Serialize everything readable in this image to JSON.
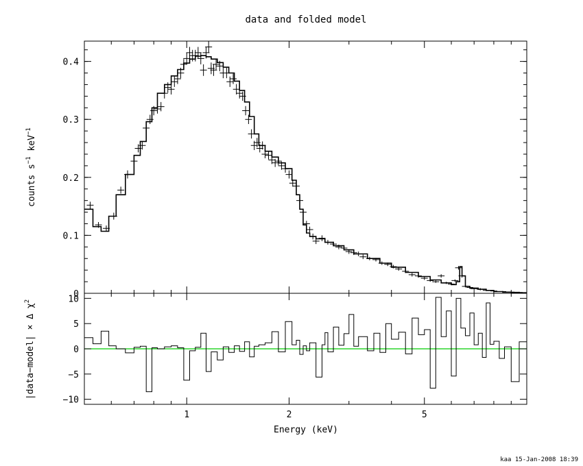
{
  "title": "data and folded model",
  "footer": "kaa 15-Jan-2008 18:39",
  "colors": {
    "line": "#000000",
    "zero_line": "#00cc00"
  },
  "chart_data": [
    {
      "type": "line",
      "panel": "top",
      "ylabel": "counts s^-1 keV^-1",
      "xscale": "log",
      "xlim": [
        0.5,
        10
      ],
      "ylim": [
        0,
        0.435
      ],
      "yticks": [
        0,
        0.1,
        0.2,
        0.3,
        0.4
      ],
      "ytick_labels": [
        "0",
        "0.1",
        "0.2",
        "0.3",
        "0.4"
      ],
      "series": [
        {
          "kind": "model-step",
          "x": [
            0.5,
            0.53,
            0.56,
            0.59,
            0.62,
            0.66,
            0.7,
            0.73,
            0.76,
            0.79,
            0.82,
            0.86,
            0.9,
            0.94,
            0.98,
            1.02,
            1.06,
            1.1,
            1.14,
            1.18,
            1.23,
            1.28,
            1.33,
            1.38,
            1.43,
            1.48,
            1.53,
            1.58,
            1.63,
            1.7,
            1.78,
            1.86,
            1.95,
            2.04,
            2.1,
            2.15,
            2.2,
            2.25,
            2.3,
            2.4,
            2.55,
            2.7,
            2.9,
            3.1,
            3.4,
            3.7,
            4.0,
            4.4,
            4.8,
            5.2,
            5.6,
            6.0,
            6.2,
            6.35,
            6.45,
            6.6,
            6.8,
            7.2,
            7.6,
            8.0,
            8.5,
            9.0,
            9.5,
            10.0
          ],
          "y": [
            0.145,
            0.115,
            0.107,
            0.133,
            0.17,
            0.205,
            0.238,
            0.262,
            0.296,
            0.32,
            0.345,
            0.36,
            0.375,
            0.386,
            0.397,
            0.404,
            0.409,
            0.41,
            0.408,
            0.404,
            0.398,
            0.39,
            0.38,
            0.366,
            0.35,
            0.33,
            0.305,
            0.275,
            0.255,
            0.245,
            0.235,
            0.225,
            0.215,
            0.195,
            0.17,
            0.145,
            0.118,
            0.104,
            0.098,
            0.094,
            0.088,
            0.082,
            0.075,
            0.068,
            0.06,
            0.052,
            0.045,
            0.036,
            0.029,
            0.023,
            0.018,
            0.015,
            0.02,
            0.046,
            0.03,
            0.012,
            0.009,
            0.007,
            0.005,
            0.003,
            0.002,
            0.0015,
            0.001,
            0.001
          ]
        },
        {
          "kind": "data",
          "x": [
            0.52,
            0.55,
            0.58,
            0.61,
            0.64,
            0.67,
            0.7,
            0.72,
            0.74,
            0.76,
            0.78,
            0.8,
            0.82,
            0.84,
            0.86,
            0.88,
            0.9,
            0.92,
            0.94,
            0.96,
            0.98,
            1.0,
            1.02,
            1.04,
            1.06,
            1.08,
            1.1,
            1.12,
            1.14,
            1.16,
            1.18,
            1.2,
            1.22,
            1.25,
            1.28,
            1.31,
            1.34,
            1.37,
            1.4,
            1.43,
            1.46,
            1.49,
            1.52,
            1.55,
            1.58,
            1.61,
            1.64,
            1.67,
            1.7,
            1.74,
            1.78,
            1.82,
            1.86,
            1.9,
            1.95,
            2.0,
            2.05,
            2.1,
            2.15,
            2.2,
            2.25,
            2.3,
            2.35,
            2.4,
            2.5,
            2.6,
            2.7,
            2.8,
            2.9,
            3.0,
            3.1,
            3.2,
            3.3,
            3.45,
            3.6,
            3.75,
            3.9,
            4.05,
            4.2,
            4.4,
            4.6,
            4.8,
            5.0,
            5.2,
            5.4,
            5.6,
            5.8,
            6.0,
            6.15,
            6.3,
            6.45,
            6.6,
            6.8,
            7.0,
            7.3,
            7.6,
            8.0,
            8.5,
            9.0,
            9.5
          ],
          "y": [
            0.152,
            0.118,
            0.112,
            0.133,
            0.178,
            0.205,
            0.228,
            0.25,
            0.255,
            0.285,
            0.3,
            0.315,
            0.318,
            0.322,
            0.345,
            0.355,
            0.352,
            0.365,
            0.37,
            0.38,
            0.395,
            0.405,
            0.415,
            0.41,
            0.41,
            0.415,
            0.405,
            0.385,
            0.415,
            0.425,
            0.388,
            0.385,
            0.395,
            0.392,
            0.38,
            0.38,
            0.365,
            0.37,
            0.352,
            0.345,
            0.34,
            0.315,
            0.3,
            0.275,
            0.255,
            0.26,
            0.25,
            0.255,
            0.24,
            0.238,
            0.23,
            0.225,
            0.228,
            0.22,
            0.215,
            0.205,
            0.19,
            0.185,
            0.16,
            0.14,
            0.12,
            0.11,
            0.098,
            0.09,
            0.095,
            0.088,
            0.085,
            0.08,
            0.078,
            0.072,
            0.07,
            0.068,
            0.063,
            0.06,
            0.058,
            0.052,
            0.05,
            0.046,
            0.042,
            0.038,
            0.032,
            0.03,
            0.026,
            0.022,
            0.02,
            0.03,
            0.018,
            0.016,
            0.022,
            0.044,
            0.03,
            0.012,
            0.01,
            0.008,
            0.007,
            0.005,
            0.004,
            0.003,
            0.002,
            0.0015
          ],
          "yerr": [
            0.006,
            0.005,
            0.005,
            0.006,
            0.006,
            0.007,
            0.007,
            0.007,
            0.007,
            0.008,
            0.008,
            0.008,
            0.008,
            0.008,
            0.009,
            0.009,
            0.009,
            0.009,
            0.009,
            0.009,
            0.009,
            0.01,
            0.01,
            0.01,
            0.01,
            0.01,
            0.01,
            0.01,
            0.01,
            0.01,
            0.01,
            0.01,
            0.009,
            0.009,
            0.009,
            0.009,
            0.009,
            0.009,
            0.009,
            0.009,
            0.008,
            0.008,
            0.008,
            0.008,
            0.008,
            0.008,
            0.007,
            0.007,
            0.007,
            0.007,
            0.007,
            0.007,
            0.007,
            0.007,
            0.007,
            0.007,
            0.006,
            0.006,
            0.006,
            0.006,
            0.005,
            0.005,
            0.005,
            0.005,
            0.005,
            0.004,
            0.004,
            0.004,
            0.004,
            0.004,
            0.004,
            0.004,
            0.004,
            0.003,
            0.003,
            0.003,
            0.003,
            0.003,
            0.003,
            0.003,
            0.003,
            0.003,
            0.003,
            0.002,
            0.002,
            0.003,
            0.002,
            0.002,
            0.002,
            0.003,
            0.003,
            0.002,
            0.002,
            0.002,
            0.002,
            0.001,
            0.001,
            0.001,
            0.001,
            0.001
          ]
        }
      ]
    },
    {
      "type": "bar",
      "panel": "bottom",
      "xlabel": "Energy (keV)",
      "ylabel": "|data-model| × Δ χ²",
      "xscale": "log",
      "xlim": [
        0.5,
        10
      ],
      "xticks": [
        1,
        2,
        5
      ],
      "xtick_labels": [
        "1",
        "2",
        "5"
      ],
      "ylim": [
        -11,
        11
      ],
      "yticks": [
        -10,
        -5,
        0,
        5,
        10
      ],
      "ytick_labels": [
        "−10",
        "−5",
        "0",
        "5",
        "10"
      ],
      "zero_line": true,
      "x": [
        0.5,
        0.53,
        0.56,
        0.59,
        0.62,
        0.66,
        0.7,
        0.73,
        0.76,
        0.79,
        0.82,
        0.86,
        0.9,
        0.94,
        0.98,
        1.02,
        1.06,
        1.1,
        1.14,
        1.18,
        1.23,
        1.28,
        1.33,
        1.38,
        1.43,
        1.48,
        1.53,
        1.58,
        1.63,
        1.7,
        1.78,
        1.86,
        1.95,
        2.04,
        2.1,
        2.15,
        2.2,
        2.25,
        2.3,
        2.4,
        2.5,
        2.55,
        2.6,
        2.7,
        2.8,
        2.9,
        3.0,
        3.1,
        3.2,
        3.4,
        3.55,
        3.7,
        3.85,
        4.0,
        4.2,
        4.4,
        4.6,
        4.8,
        5.0,
        5.2,
        5.4,
        5.6,
        5.8,
        6.0,
        6.2,
        6.4,
        6.6,
        6.8,
        7.0,
        7.2,
        7.4,
        7.6,
        7.8,
        8.0,
        8.3,
        8.6,
        9.0,
        9.5,
        10.0
      ],
      "values": [
        2.2,
        1.0,
        3.5,
        0.6,
        0.0,
        -0.8,
        0.3,
        0.5,
        -8.5,
        0.2,
        0.0,
        0.4,
        0.6,
        0.2,
        -6.2,
        -0.4,
        0.3,
        3.1,
        -4.5,
        -0.6,
        -2.2,
        0.4,
        -0.7,
        0.6,
        -0.5,
        1.4,
        -1.6,
        0.5,
        0.8,
        1.2,
        3.4,
        -0.6,
        5.4,
        0.8,
        1.7,
        -1.1,
        0.6,
        -0.4,
        1.2,
        -5.6,
        0.8,
        3.2,
        -0.6,
        4.3,
        0.7,
        3.0,
        6.8,
        0.5,
        2.4,
        -0.4,
        3.1,
        -0.7,
        5.0,
        1.9,
        3.3,
        -1.0,
        6.1,
        2.8,
        3.8,
        -7.8,
        10.2,
        2.4,
        7.5,
        -5.4,
        10.0,
        4.1,
        2.6,
        7.1,
        0.8,
        3.1,
        -1.7,
        9.1,
        0.9,
        1.5,
        -1.9,
        0.4,
        -6.5,
        1.4,
        0.3
      ]
    }
  ]
}
